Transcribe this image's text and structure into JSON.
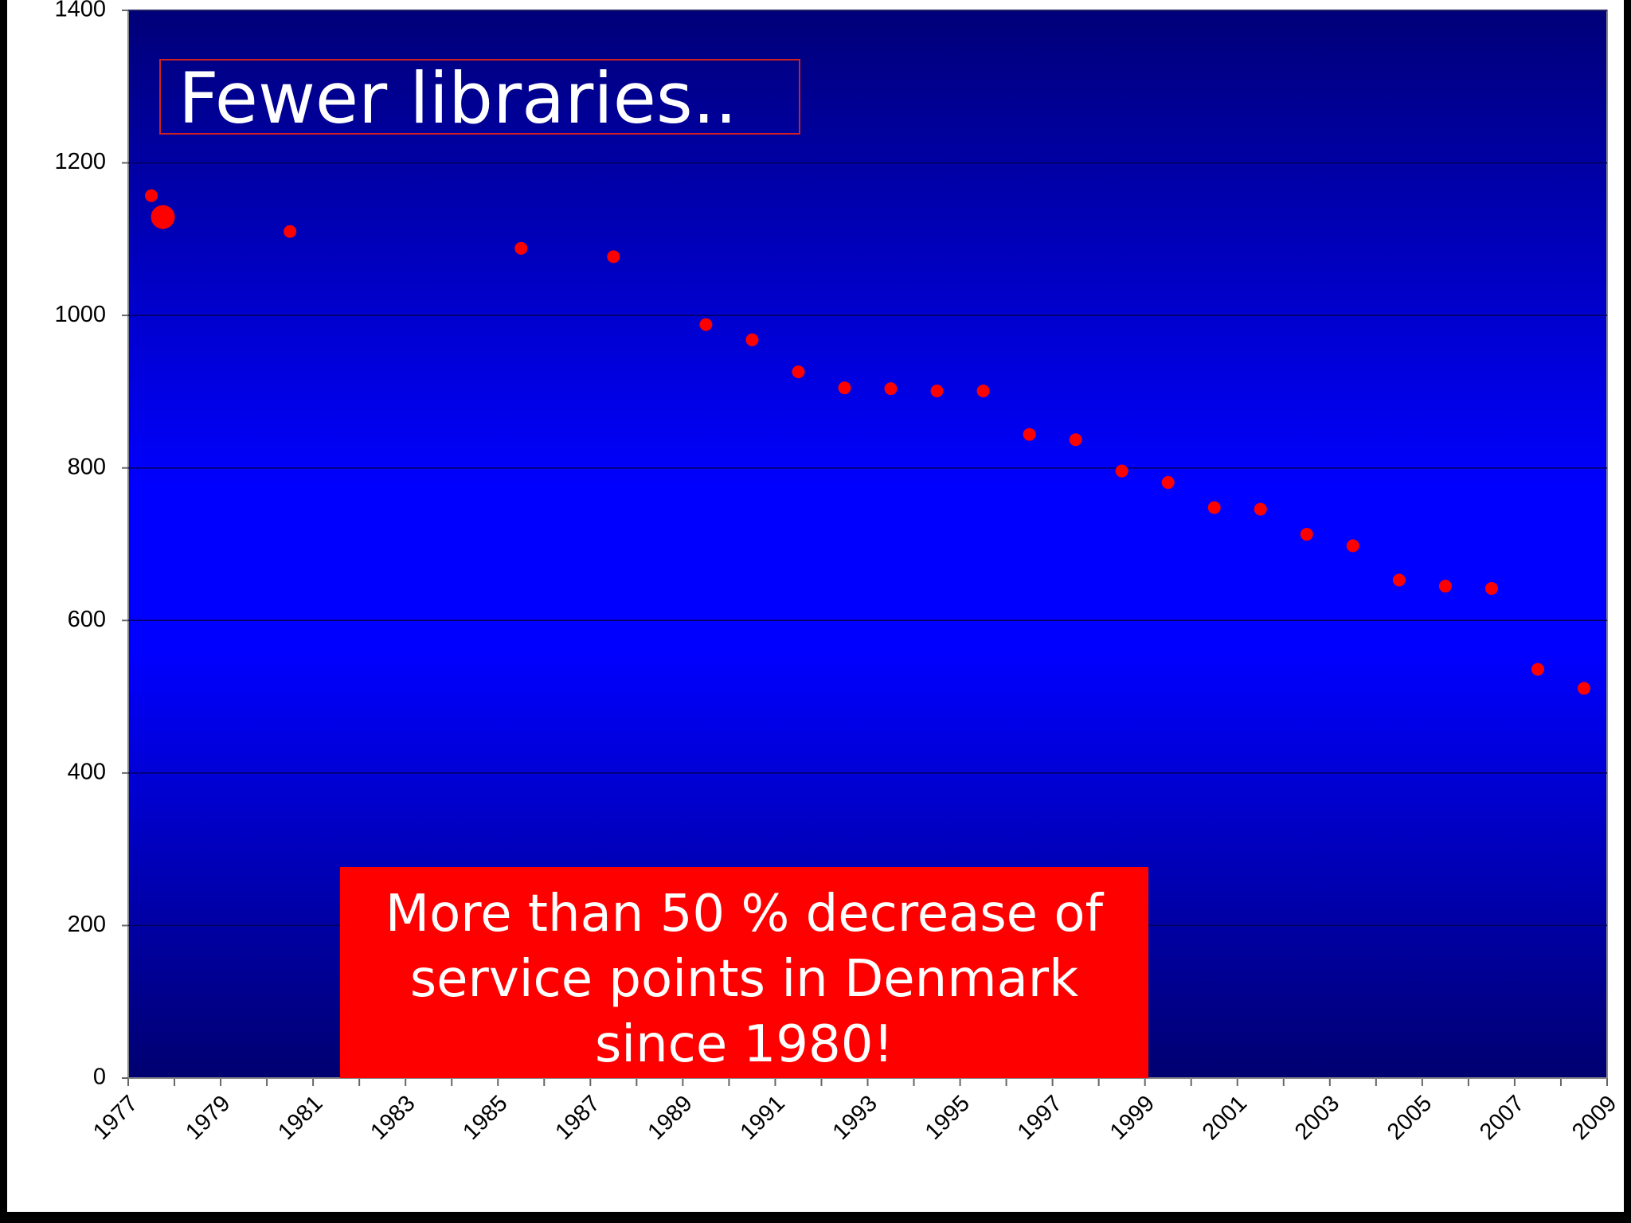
{
  "chart_data": {
    "type": "scatter",
    "title": "Fewer libraries..",
    "annotation": "More than 50 % decrease of service points in Denmark since 1980!",
    "series": [
      {
        "color": "#ff0000",
        "x": [
          1977.5,
          1980.5,
          1985.5,
          1987.5,
          1989.5,
          1990.5,
          1991.5,
          1992.5,
          1993.5,
          1994.5,
          1995.5,
          1996.5,
          1997.5,
          1998.5,
          1999.5,
          2000.5,
          2001.5,
          2002.5,
          2003.5,
          2004.5,
          2005.5,
          2006.5,
          2007.5,
          2008.5
        ],
        "values": [
          1157,
          1110,
          1088,
          1077,
          988,
          968,
          926,
          905,
          904,
          901,
          901,
          844,
          837,
          796,
          781,
          748,
          746,
          713,
          698,
          653,
          645,
          642,
          536,
          511
        ]
      },
      {
        "color": "#ff0000",
        "x": [
          1977.75
        ],
        "values": [
          1129
        ]
      }
    ],
    "xlim": [
      1977,
      2009
    ],
    "xticks": [
      1977,
      1979,
      1981,
      1983,
      1985,
      1987,
      1989,
      1991,
      1993,
      1995,
      1997,
      1999,
      2001,
      2003,
      2005,
      2007,
      2009
    ],
    "ylim": [
      0,
      1400
    ],
    "yticks": [
      0,
      200,
      400,
      600,
      800,
      1000,
      1200,
      1400
    ],
    "grid": true
  }
}
